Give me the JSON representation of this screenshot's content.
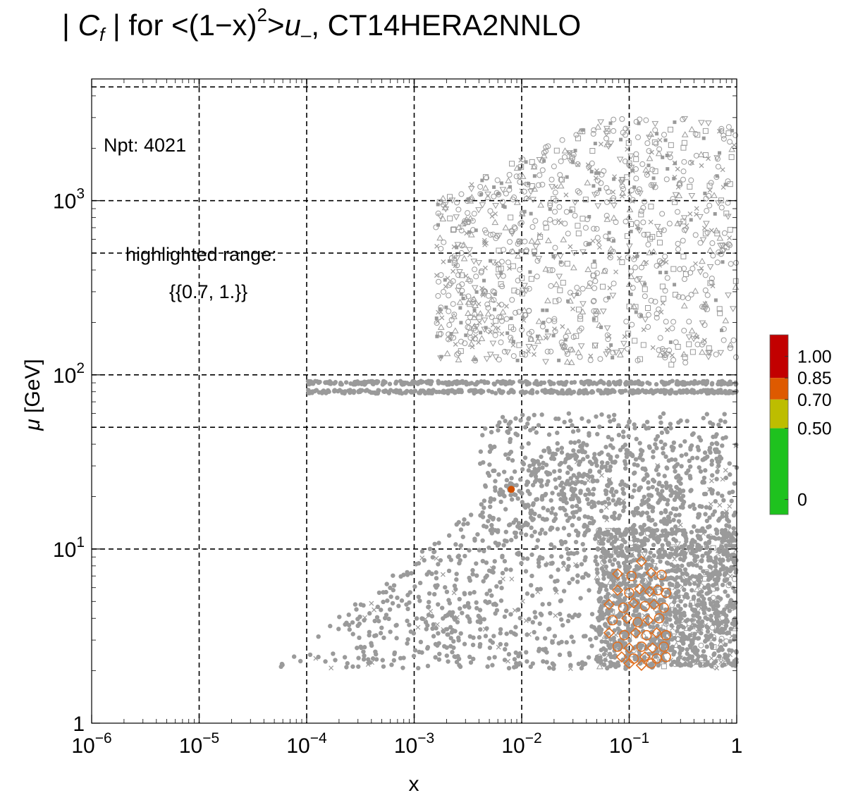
{
  "chart_data": {
    "type": "scatter",
    "title_parts": {
      "prefix": "| ",
      "c": "C",
      "c_sub": "f",
      "mid": " | for <(1−x)",
      "sup": "2",
      "after": ">",
      "u": "u",
      "u_sub": "–",
      "suffix": ", CT14HERA2NNLO"
    },
    "xlabel": "x",
    "ylabel_sym": "μ",
    "ylabel_unit": " [GeV]",
    "x_scale": "log",
    "y_scale": "log",
    "xlim": [
      1e-06,
      1
    ],
    "ylim": [
      1,
      5000
    ],
    "grid_x": [
      1e-05,
      0.0001,
      0.001,
      0.01,
      0.1
    ],
    "grid_y": [
      10,
      50,
      100,
      500,
      1000,
      4500
    ],
    "x_ticks": [
      {
        "value": 1e-06,
        "base": "10",
        "exp": "−6"
      },
      {
        "value": 1e-05,
        "base": "10",
        "exp": "−5"
      },
      {
        "value": 0.0001,
        "base": "10",
        "exp": "−4"
      },
      {
        "value": 0.001,
        "base": "10",
        "exp": "−3"
      },
      {
        "value": 0.01,
        "base": "10",
        "exp": "−2"
      },
      {
        "value": 0.1,
        "base": "10",
        "exp": "−1"
      },
      {
        "value": 1,
        "base": "1",
        "exp": ""
      }
    ],
    "y_ticks": [
      {
        "value": 1,
        "base": "1",
        "exp": ""
      },
      {
        "value": 10,
        "base": "10",
        "exp": "1"
      },
      {
        "value": 100,
        "base": "10",
        "exp": "2"
      },
      {
        "value": 1000,
        "base": "10",
        "exp": "3"
      }
    ],
    "annotations": {
      "npt": "Npt: 4021",
      "range_label": "highlighted range:",
      "range_value": "{{0.7, 1.}}"
    },
    "colorbar": {
      "labels": [
        "1.00",
        "0.85",
        "0.70",
        "0.50",
        "0"
      ],
      "segments": [
        {
          "from": 0.85,
          "to": 1.15,
          "color": "#c20000"
        },
        {
          "from": 0.7,
          "to": 0.85,
          "color": "#de5a00"
        },
        {
          "from": 0.5,
          "to": 0.7,
          "color": "#bdbd00"
        },
        {
          "from": -0.1,
          "to": 0.5,
          "color": "#1ec21e"
        }
      ]
    },
    "colors": {
      "background_points": "#9a9a9a",
      "highlight": "#e07020",
      "highlight_solid": "#d05000"
    },
    "highlighted_points": [
      {
        "x": 0.008,
        "y": 22,
        "marker": "filled-circle"
      },
      {
        "x": 0.13,
        "y": 8.5,
        "marker": "diamond"
      },
      {
        "x": 0.078,
        "y": 7.2,
        "marker": "diamond"
      },
      {
        "x": 0.105,
        "y": 7.0,
        "marker": "circle"
      },
      {
        "x": 0.16,
        "y": 7.3,
        "marker": "diamond"
      },
      {
        "x": 0.2,
        "y": 7.1,
        "marker": "circle"
      },
      {
        "x": 0.078,
        "y": 5.8,
        "marker": "diamond"
      },
      {
        "x": 0.1,
        "y": 5.6,
        "marker": "circle"
      },
      {
        "x": 0.125,
        "y": 5.9,
        "marker": "diamond"
      },
      {
        "x": 0.155,
        "y": 5.7,
        "marker": "diamond"
      },
      {
        "x": 0.185,
        "y": 5.8,
        "marker": "circle"
      },
      {
        "x": 0.22,
        "y": 5.6,
        "marker": "circle"
      },
      {
        "x": 0.065,
        "y": 4.8,
        "marker": "diamond"
      },
      {
        "x": 0.088,
        "y": 4.6,
        "marker": "circle"
      },
      {
        "x": 0.11,
        "y": 4.9,
        "marker": "diamond"
      },
      {
        "x": 0.14,
        "y": 4.7,
        "marker": "circle"
      },
      {
        "x": 0.17,
        "y": 4.8,
        "marker": "diamond"
      },
      {
        "x": 0.21,
        "y": 4.6,
        "marker": "circle"
      },
      {
        "x": 0.07,
        "y": 3.9,
        "marker": "circle"
      },
      {
        "x": 0.095,
        "y": 4.0,
        "marker": "diamond"
      },
      {
        "x": 0.12,
        "y": 3.8,
        "marker": "circle"
      },
      {
        "x": 0.15,
        "y": 3.9,
        "marker": "diamond"
      },
      {
        "x": 0.19,
        "y": 4.0,
        "marker": "circle"
      },
      {
        "x": 0.065,
        "y": 3.3,
        "marker": "diamond"
      },
      {
        "x": 0.09,
        "y": 3.2,
        "marker": "circle"
      },
      {
        "x": 0.115,
        "y": 3.3,
        "marker": "diamond"
      },
      {
        "x": 0.145,
        "y": 3.2,
        "marker": "circle"
      },
      {
        "x": 0.18,
        "y": 3.3,
        "marker": "diamond"
      },
      {
        "x": 0.22,
        "y": 3.2,
        "marker": "circle"
      },
      {
        "x": 0.078,
        "y": 2.75,
        "marker": "circle"
      },
      {
        "x": 0.1,
        "y": 2.7,
        "marker": "diamond"
      },
      {
        "x": 0.13,
        "y": 2.75,
        "marker": "circle"
      },
      {
        "x": 0.165,
        "y": 2.7,
        "marker": "diamond"
      },
      {
        "x": 0.21,
        "y": 2.75,
        "marker": "circle"
      },
      {
        "x": 0.085,
        "y": 2.4,
        "marker": "diamond"
      },
      {
        "x": 0.11,
        "y": 2.35,
        "marker": "circle"
      },
      {
        "x": 0.14,
        "y": 2.4,
        "marker": "diamond"
      },
      {
        "x": 0.18,
        "y": 2.35,
        "marker": "circle"
      },
      {
        "x": 0.22,
        "y": 2.4,
        "marker": "circle"
      },
      {
        "x": 0.1,
        "y": 2.2,
        "marker": "diamond"
      },
      {
        "x": 0.13,
        "y": 2.15,
        "marker": "diamond"
      },
      {
        "x": 0.16,
        "y": 2.2,
        "marker": "circle"
      }
    ]
  }
}
